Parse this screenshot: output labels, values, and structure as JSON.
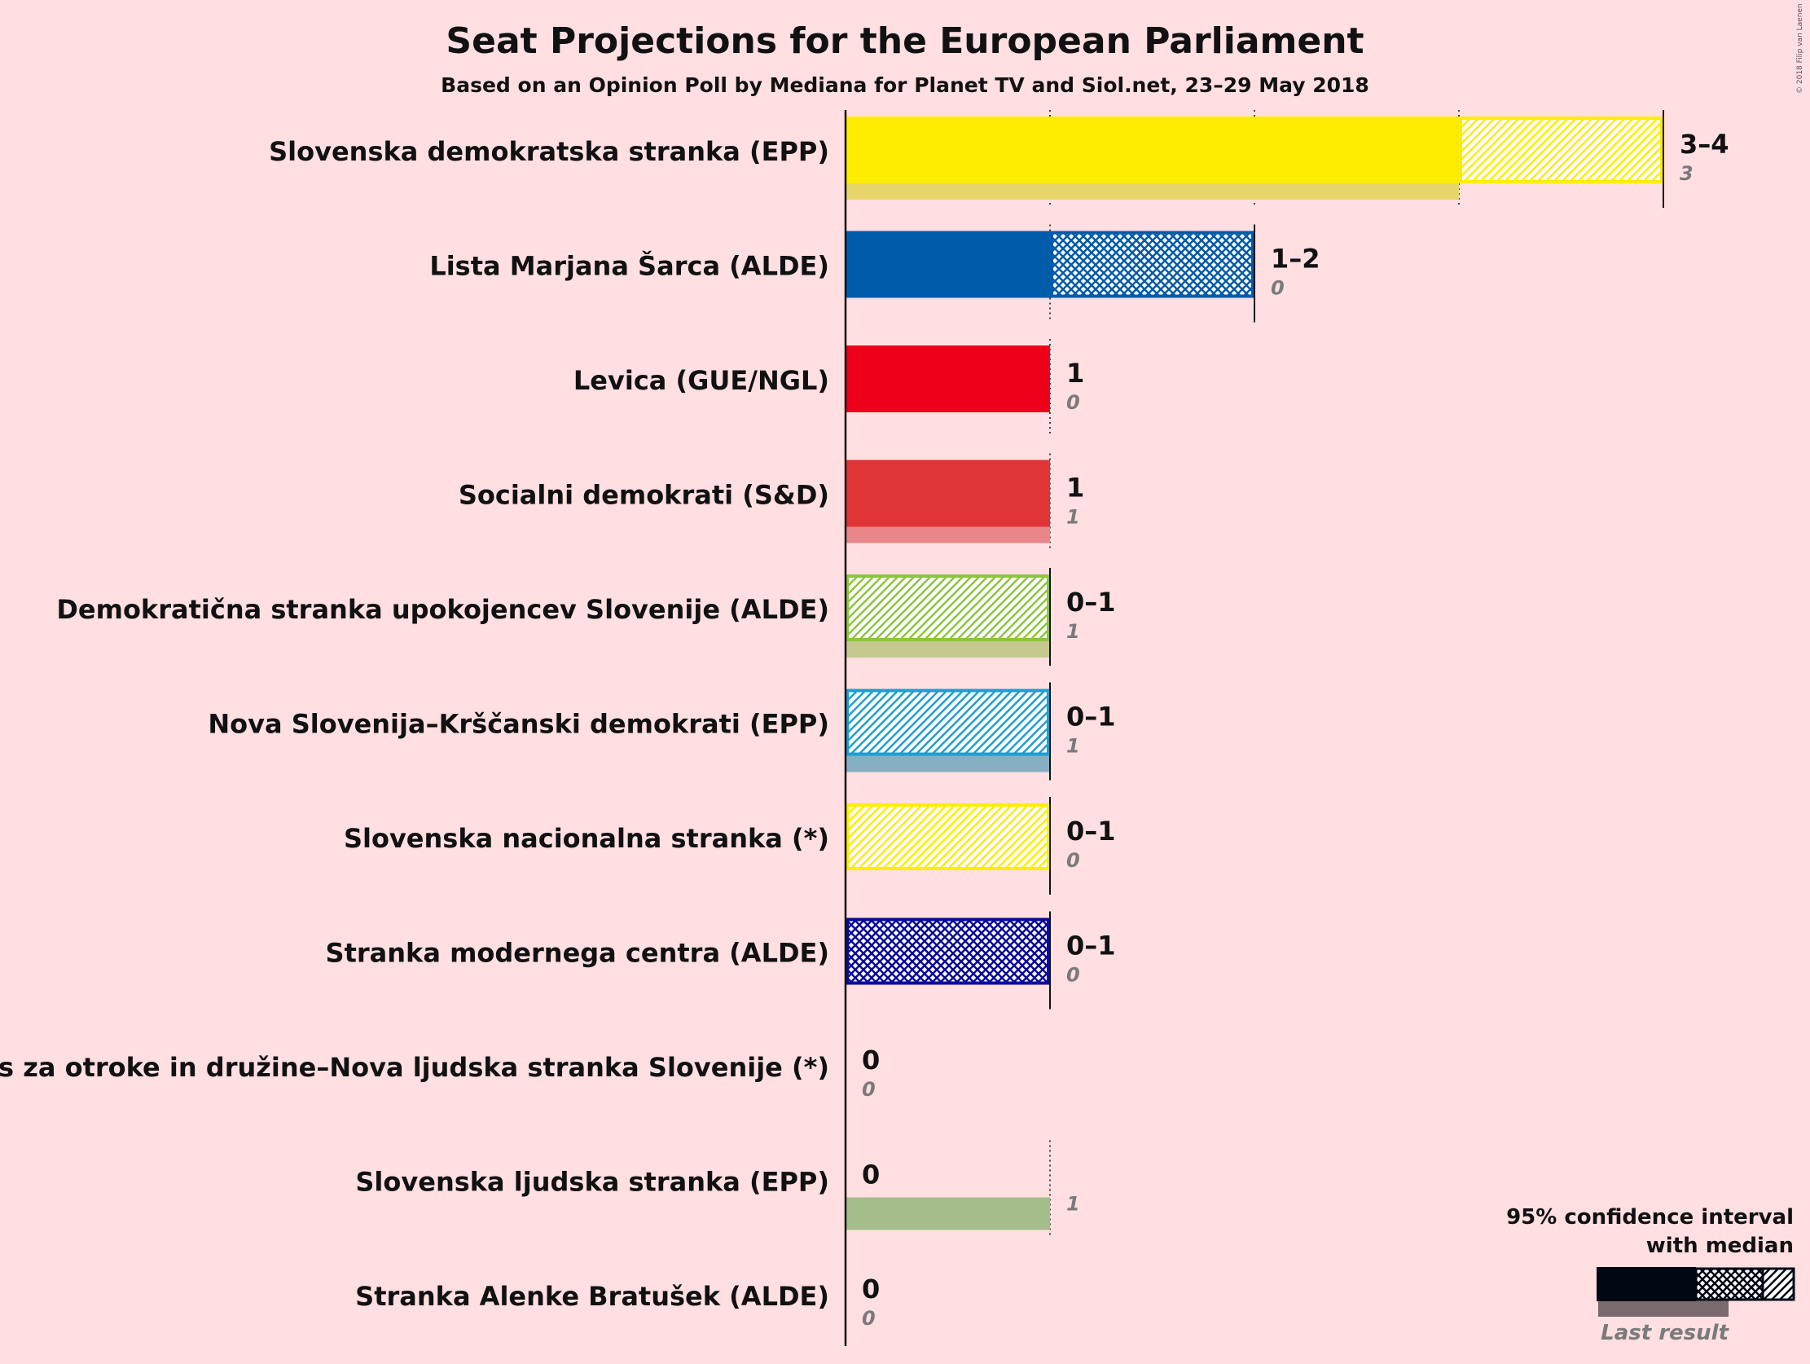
{
  "title": "Seat Projections for the European Parliament",
  "subtitle": "Based on an Opinion Poll by Mediana for Planet TV and Siol.net, 23–29 May 2018",
  "copyright": "© 2018 Filip van Laenen",
  "legend": {
    "line1": "95% confidence interval",
    "line2": "with median",
    "last_result": "Last result"
  },
  "chart_data": {
    "type": "bar",
    "orientation": "horizontal",
    "xlim": [
      0,
      4
    ],
    "grid": "dotted vertical lines at each seat",
    "categories": [
      "Slovenska demokratska stranka (EPP)",
      "Lista Marjana Šarca (ALDE)",
      "Levica (GUE/NGL)",
      "Socialni demokrati (S&D)",
      "Demokratična stranka upokojencev Slovenije (ALDE)",
      "Nova Slovenija–Krščanski demokrati (EPP)",
      "Slovenska nacionalna stranka (*)",
      "Stranka modernega centra (ALDE)",
      "Glas za otroke in družine–Nova ljudska stranka Slovenije (*)",
      "Slovenska ljudska stranka (EPP)",
      "Stranka Alenke Bratušek (ALDE)"
    ],
    "parties": [
      {
        "name": "Slovenska demokratska stranka (EPP)",
        "low": 3,
        "median": 3,
        "high": 4,
        "range_text": "3–4",
        "last": 3,
        "last_text": "3",
        "color": "#FFED00",
        "last_color": "#E9D66A"
      },
      {
        "name": "Lista Marjana Šarca (ALDE)",
        "low": 1,
        "median": 1,
        "high": 2,
        "range_text": "1–2",
        "last": 0,
        "last_text": "0",
        "color": "#005BAA",
        "last_color": "#7FA6CF"
      },
      {
        "name": "Levica (GUE/NGL)",
        "low": 1,
        "median": 1,
        "high": 1,
        "range_text": "1",
        "last": 0,
        "last_text": "0",
        "color": "#EE001A",
        "last_color": "#E27A85"
      },
      {
        "name": "Socialni demokrati (S&D)",
        "low": 1,
        "median": 1,
        "high": 1,
        "range_text": "1",
        "last": 1,
        "last_text": "1",
        "color": "#E03436",
        "last_color": "#E9868A"
      },
      {
        "name": "Demokratična stranka upokojencev Slovenije (ALDE)",
        "low": 0,
        "median": 0,
        "high": 1,
        "range_text": "0–1",
        "last": 1,
        "last_text": "1",
        "color": "#8CC63E",
        "last_color": "#C5C98E"
      },
      {
        "name": "Nova Slovenija–Krščanski demokrati (EPP)",
        "low": 0,
        "median": 0,
        "high": 1,
        "range_text": "0–1",
        "last": 1,
        "last_text": "1",
        "color": "#1E9FD2",
        "last_color": "#86AFC2"
      },
      {
        "name": "Slovenska nacionalna stranka (*)",
        "low": 0,
        "median": 0,
        "high": 1,
        "range_text": "0–1",
        "last": 0,
        "last_text": "0",
        "color": "#FFED00",
        "last_color": "#E9D66A"
      },
      {
        "name": "Stranka modernega centra (ALDE)",
        "low": 0,
        "median": 0,
        "high": 1,
        "range_text": "0–1",
        "last": 0,
        "last_text": "0",
        "color": "#0A0A9A",
        "last_color": "#8080C0"
      },
      {
        "name": "Glas za otroke in družine–Nova ljudska stranka Slovenije (*)",
        "low": 0,
        "median": 0,
        "high": 0,
        "range_text": "0",
        "last": 0,
        "last_text": "0",
        "color": "#555555",
        "last_color": "#AAAAAA"
      },
      {
        "name": "Slovenska ljudska stranka (EPP)",
        "low": 0,
        "median": 0,
        "high": 0,
        "range_text": "0",
        "last": 1,
        "last_text": "1",
        "color": "#4B8B2A",
        "last_color": "#A5BD8A"
      },
      {
        "name": "Stranka Alenke Bratušek (ALDE)",
        "low": 0,
        "median": 0,
        "high": 0,
        "range_text": "0",
        "last": 0,
        "last_text": "0",
        "color": "#555555",
        "last_color": "#AAAAAA"
      }
    ]
  }
}
